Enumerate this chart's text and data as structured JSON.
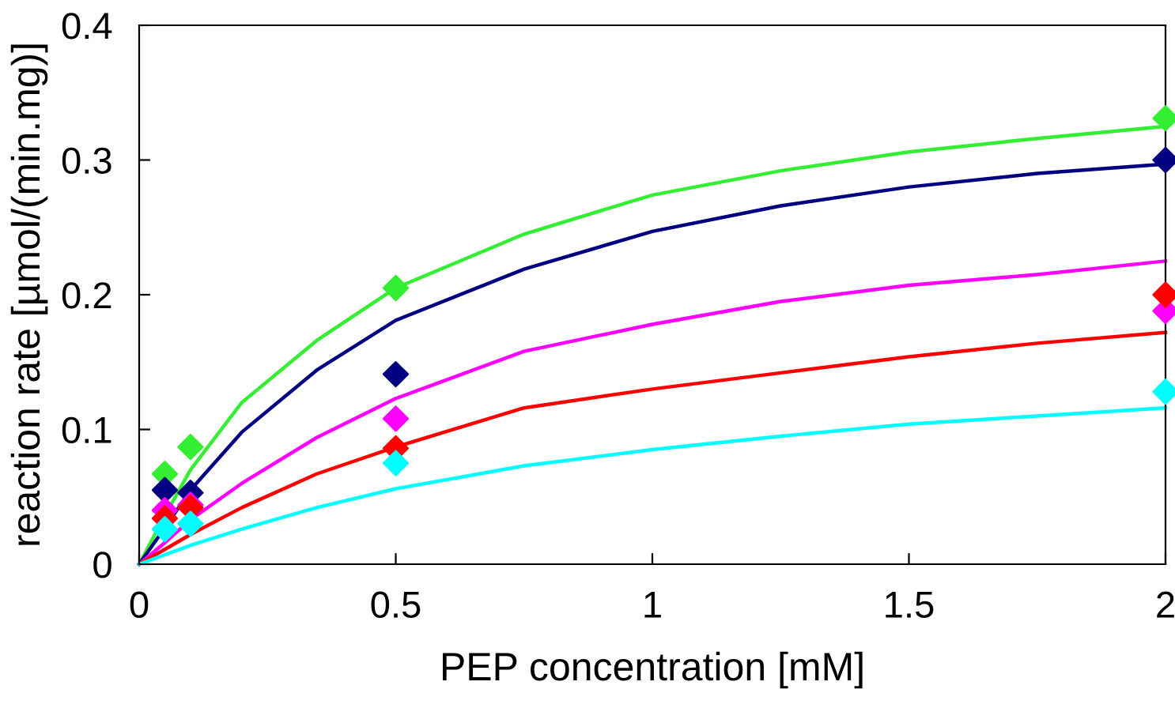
{
  "chart_data": {
    "type": "line",
    "xlabel": "PEP concentration [mM]",
    "ylabel": "reaction rate [µmol/(min.mg)]",
    "xlim": [
      0,
      2
    ],
    "xticks": [
      0,
      0.5,
      1,
      1.5,
      2
    ],
    "ylim": [
      0,
      0.4
    ],
    "yticks": [
      0,
      0.1,
      0.2,
      0.3,
      0.4
    ],
    "grid": false,
    "series": [
      {
        "type": "scatter",
        "marker": "diamond",
        "color": "#33ee33",
        "x": [
          0.05,
          0.1,
          0.5,
          2
        ],
        "values": [
          0.067,
          0.087,
          0.205,
          0.331
        ]
      },
      {
        "type": "scatter",
        "marker": "diamond",
        "color": "#000080",
        "x": [
          0.05,
          0.1,
          0.5,
          2
        ],
        "values": [
          0.055,
          0.053,
          0.141,
          0.3
        ]
      },
      {
        "type": "scatter",
        "marker": "diamond",
        "color": "#ff00ff",
        "x": [
          0.05,
          0.1,
          0.5,
          2
        ],
        "values": [
          0.04,
          0.044,
          0.108,
          0.188
        ]
      },
      {
        "type": "scatter",
        "marker": "diamond",
        "color": "#ff0000",
        "x": [
          0.05,
          0.1,
          0.5,
          2
        ],
        "values": [
          0.034,
          0.042,
          0.086,
          0.2
        ]
      },
      {
        "type": "scatter",
        "marker": "diamond",
        "color": "#00ffff",
        "x": [
          0.05,
          0.1,
          0.5,
          2
        ],
        "values": [
          0.026,
          0.03,
          0.075,
          0.128
        ]
      },
      {
        "marker": "none",
        "color": "#33ee33",
        "x": [
          0,
          0.05,
          0.1,
          0.2,
          0.346,
          0.5,
          0.75,
          1,
          1.25,
          1.5,
          1.75,
          2
        ],
        "values": [
          0,
          0.036,
          0.07,
          0.12,
          0.166,
          0.205,
          0.245,
          0.274,
          0.292,
          0.306,
          0.316,
          0.325
        ]
      },
      {
        "marker": "none",
        "color": "#000080",
        "x": [
          0,
          0.05,
          0.1,
          0.2,
          0.346,
          0.5,
          0.75,
          1,
          1.25,
          1.5,
          1.75,
          2
        ],
        "values": [
          0,
          0.027,
          0.055,
          0.098,
          0.144,
          0.181,
          0.219,
          0.247,
          0.266,
          0.28,
          0.29,
          0.297
        ]
      },
      {
        "marker": "none",
        "color": "#ff00ff",
        "x": [
          0,
          0.05,
          0.1,
          0.2,
          0.346,
          0.5,
          0.75,
          1,
          1.25,
          1.5,
          1.75,
          2
        ],
        "values": [
          0,
          0.016,
          0.033,
          0.06,
          0.094,
          0.123,
          0.158,
          0.178,
          0.195,
          0.207,
          0.215,
          0.225
        ]
      },
      {
        "marker": "none",
        "color": "#ff0000",
        "x": [
          0,
          0.05,
          0.1,
          0.2,
          0.346,
          0.5,
          0.75,
          1,
          1.25,
          1.5,
          1.75,
          2
        ],
        "values": [
          0,
          0.011,
          0.022,
          0.042,
          0.067,
          0.087,
          0.116,
          0.13,
          0.142,
          0.154,
          0.164,
          0.172
        ]
      },
      {
        "marker": "none",
        "color": "#00ffff",
        "x": [
          0,
          0.05,
          0.1,
          0.2,
          0.346,
          0.5,
          0.75,
          1,
          1.25,
          1.5,
          1.75,
          2
        ],
        "values": [
          0,
          0.007,
          0.014,
          0.026,
          0.042,
          0.056,
          0.073,
          0.085,
          0.095,
          0.104,
          0.11,
          0.116
        ]
      }
    ]
  }
}
